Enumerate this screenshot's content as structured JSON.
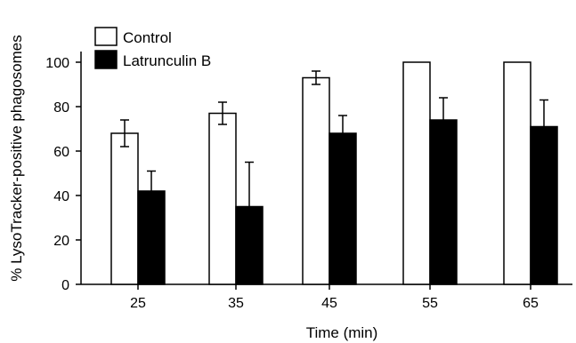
{
  "chart_data": {
    "type": "bar",
    "categories": [
      "25",
      "35",
      "45",
      "55",
      "65"
    ],
    "series": [
      {
        "name": "Control",
        "values": [
          68,
          77,
          93,
          100,
          100
        ],
        "errors": [
          6,
          5,
          3,
          0,
          0
        ],
        "fill": "#ffffff"
      },
      {
        "name": "Latrunculin B",
        "values": [
          42,
          35,
          68,
          74,
          71
        ],
        "errors": [
          9,
          20,
          8,
          10,
          12
        ],
        "fill": "#000000"
      }
    ],
    "xlabel": "Time (min)",
    "ylabel": "% LysoTracker-positive phagosomes",
    "ylim": [
      0,
      100
    ],
    "yticks": [
      0,
      20,
      40,
      60,
      80,
      100
    ],
    "legend_position": "top-left",
    "grid": false
  }
}
